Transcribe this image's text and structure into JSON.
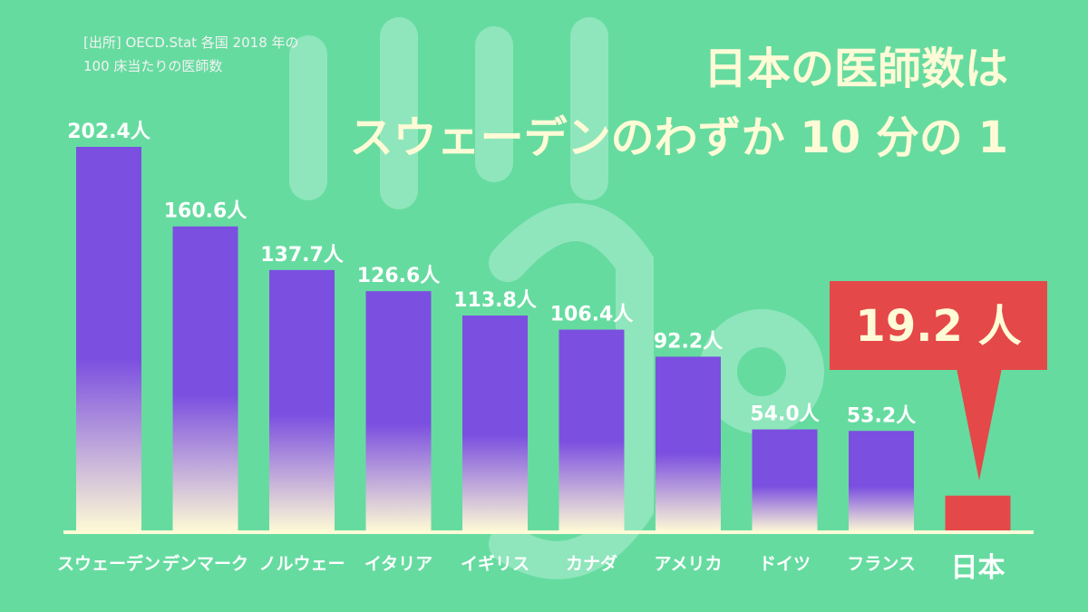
{
  "source": {
    "line1": "[出所] OECD.Stat 各国 2018 年の",
    "line2": "100 床当たりの医師数"
  },
  "headline": {
    "line1": "日本の医師数は",
    "line2": "スウェーデンのわずか 10 分の 1"
  },
  "callout": {
    "text": "19.2 人"
  },
  "colors": {
    "background": "#66dba0",
    "bar_top": "#7b4fe0",
    "bar_bottom": "#fffbd6",
    "highlight": "#e54848",
    "axis": "#fffbd6"
  },
  "chart_data": {
    "type": "bar",
    "categories": [
      "スウェーデン",
      "デンマーク",
      "ノルウェー",
      "イタリア",
      "イギリス",
      "カナダ",
      "アメリカ",
      "ドイツ",
      "フランス",
      "日本"
    ],
    "values": [
      202.4,
      160.6,
      137.7,
      126.6,
      113.8,
      106.4,
      92.2,
      54.0,
      53.2,
      19.2
    ],
    "value_labels": [
      "202.4人",
      "160.6人",
      "137.7人",
      "126.6人",
      "113.8人",
      "106.4人",
      "92.2人",
      "54.0人",
      "53.2人",
      ""
    ],
    "highlight_index": 9,
    "ylim": [
      0,
      210
    ],
    "grid": false
  }
}
